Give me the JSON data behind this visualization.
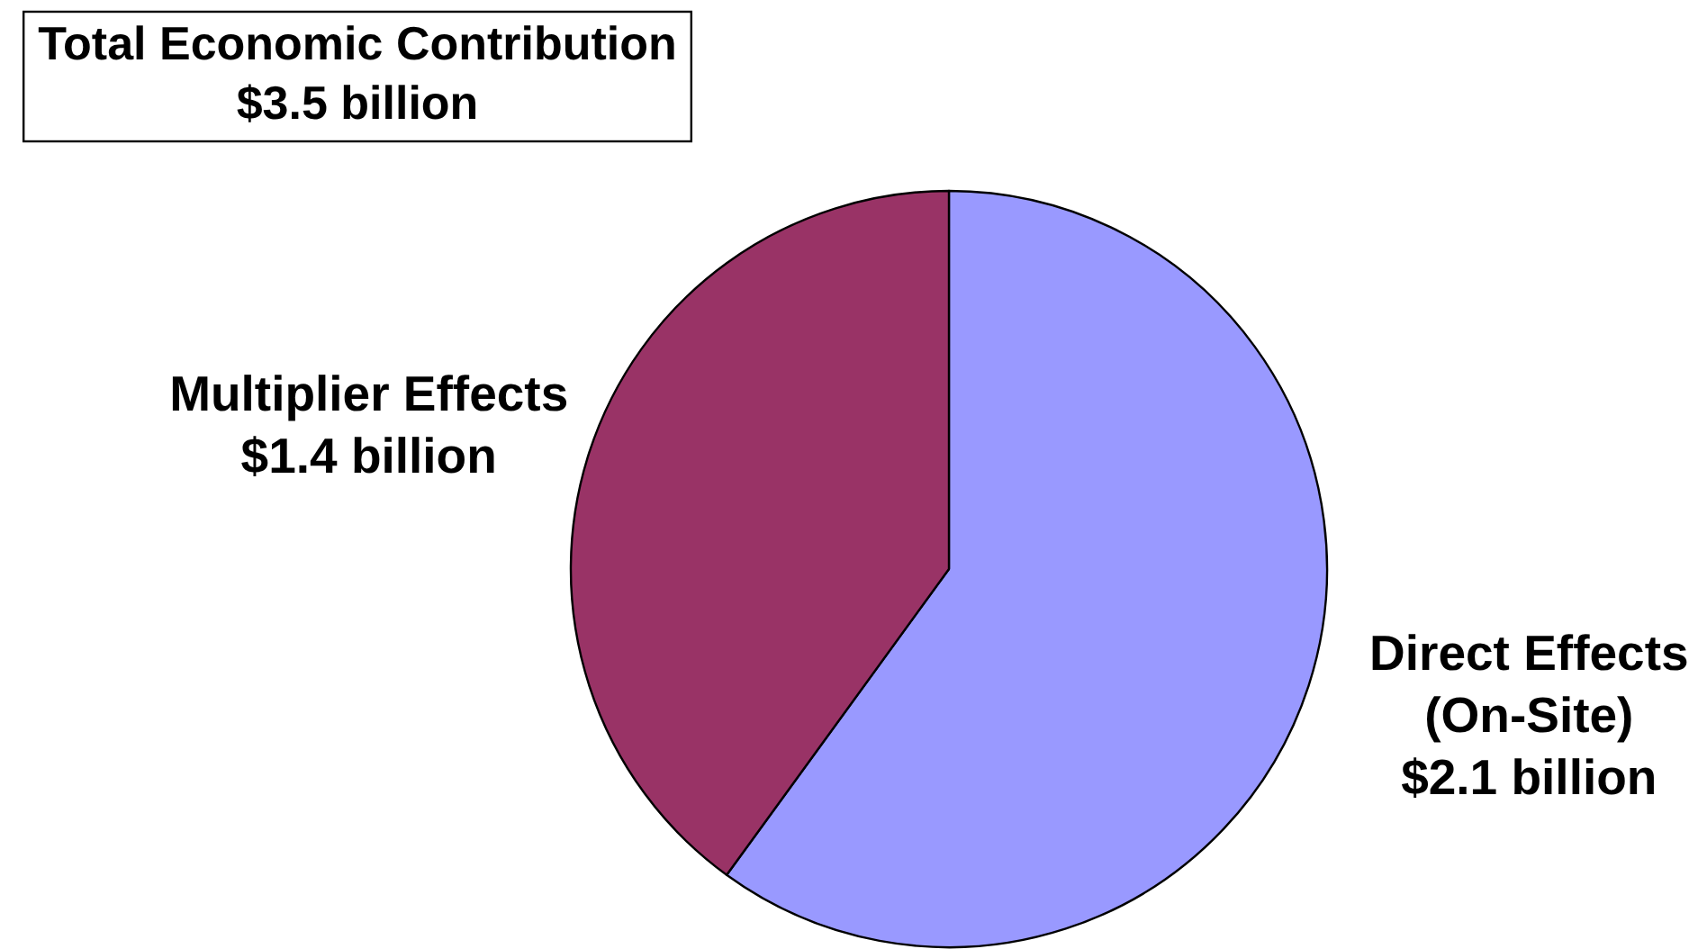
{
  "chart_data": {
    "type": "pie",
    "title": "Total Economic Contribution",
    "subtitle": "$3.5 billion",
    "categories": [
      "Direct Effects (On-Site)",
      "Multiplier Effects"
    ],
    "values": [
      2.1,
      1.4
    ],
    "value_labels": [
      "$2.1 billion",
      "$1.4 billion"
    ],
    "colors": [
      "#9999ff",
      "#993366"
    ]
  }
}
